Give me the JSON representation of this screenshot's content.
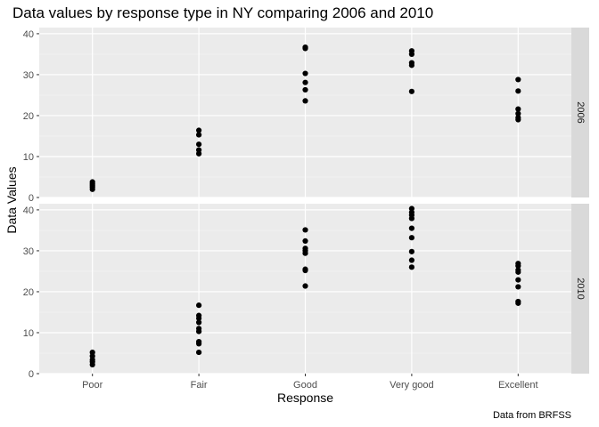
{
  "chart_data": {
    "type": "scatter",
    "title": "Data values by response type in NY comparing 2006 and 2010",
    "xlabel": "Response",
    "ylabel": "Data Values",
    "caption": "Data from BRFSS",
    "categories": [
      "Poor",
      "Fair",
      "Good",
      "Very good",
      "Excellent"
    ],
    "ylim": [
      0,
      41.5
    ],
    "yticks": [
      0,
      10,
      20,
      30,
      40
    ],
    "grid": true,
    "facets": [
      {
        "label": "2006",
        "points": {
          "Poor": [
            2.0,
            2.5,
            3.0,
            3.4,
            3.8
          ],
          "Fair": [
            10.7,
            11.6,
            13.0,
            15.3,
            16.4
          ],
          "Good": [
            23.6,
            26.3,
            28.1,
            30.3,
            36.4,
            36.7
          ],
          "Very good": [
            25.9,
            32.3,
            32.9,
            35.0,
            35.8
          ],
          "Excellent": [
            19.0,
            19.5,
            20.5,
            21.6,
            26.0,
            28.8
          ]
        }
      },
      {
        "label": "2010",
        "points": {
          "Poor": [
            2.2,
            2.9,
            3.4,
            4.3,
            5.2
          ],
          "Fair": [
            5.2,
            7.3,
            7.8,
            10.3,
            11.0,
            12.5,
            13.5,
            14.2,
            16.7
          ],
          "Good": [
            21.4,
            25.2,
            25.5,
            29.4,
            30.0,
            30.6,
            32.4,
            35.1
          ],
          "Very good": [
            26.0,
            27.7,
            29.8,
            33.2,
            35.5,
            37.9,
            38.7,
            39.4,
            40.3
          ],
          "Excellent": [
            17.2,
            17.6,
            21.2,
            22.9,
            24.8,
            25.3,
            26.3,
            26.9
          ]
        }
      }
    ]
  }
}
